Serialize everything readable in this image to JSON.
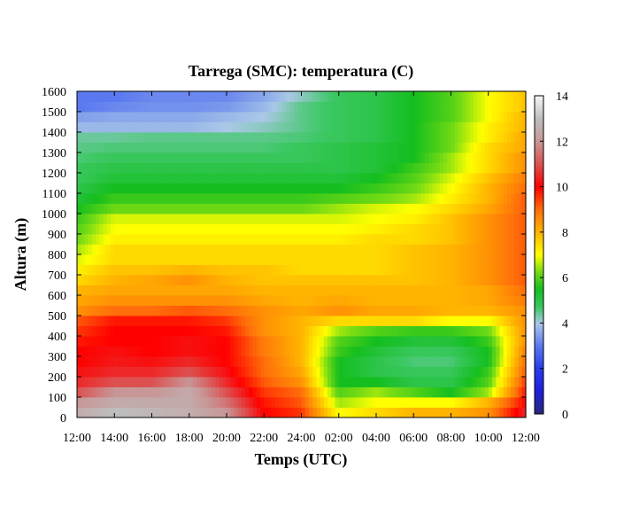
{
  "chart_data": {
    "type": "heatmap",
    "title": "Tarrega (SMC): temperatura (C)",
    "xlabel": "Temps (UTC)",
    "ylabel": "Altura (m)",
    "x_ticks": [
      "12:00",
      "14:00",
      "16:00",
      "18:00",
      "20:00",
      "22:00",
      "24:00",
      "02:00",
      "04:00",
      "06:00",
      "08:00",
      "10:00",
      "12:00"
    ],
    "y_ticks": [
      "0",
      "100",
      "200",
      "300",
      "400",
      "500",
      "600",
      "700",
      "800",
      "900",
      "1000",
      "1100",
      "1200",
      "1300",
      "1400",
      "1500",
      "1600"
    ],
    "colorbar_ticks": [
      "0",
      "2",
      "4",
      "6",
      "8",
      "10",
      "12",
      "14"
    ],
    "xlim_hours": [
      0,
      24
    ],
    "ylim": [
      0,
      1600
    ],
    "zlim": [
      0,
      14
    ],
    "levels_m": [
      0,
      50,
      100,
      150,
      200,
      250,
      300,
      350,
      400,
      450,
      500,
      550,
      600,
      650,
      700,
      750,
      800,
      850,
      900,
      950,
      1000,
      1050,
      1100,
      1150,
      1200,
      1250,
      1300,
      1350,
      1400,
      1450,
      1500,
      1550
    ],
    "times_h": [
      0,
      2,
      4,
      6,
      8,
      10,
      12,
      14,
      16,
      18,
      20,
      22,
      24
    ],
    "temperature": [
      [
        12.5,
        13.0,
        12.8,
        12.6,
        12.0,
        10.0,
        9.5,
        7.0,
        7.5,
        8.0,
        8.0,
        8.5,
        10.5
      ],
      [
        12.0,
        12.5,
        12.5,
        12.5,
        11.5,
        9.8,
        9.2,
        6.5,
        7.0,
        7.0,
        7.0,
        8.0,
        10.0
      ],
      [
        11.0,
        12.0,
        12.0,
        12.5,
        11.0,
        9.5,
        9.0,
        6.0,
        6.5,
        6.0,
        5.5,
        6.5,
        9.8
      ],
      [
        10.5,
        11.0,
        11.0,
        12.0,
        10.5,
        9.2,
        8.5,
        5.5,
        5.5,
        5.0,
        5.0,
        6.0,
        9.5
      ],
      [
        10.2,
        10.5,
        10.5,
        11.0,
        10.2,
        9.0,
        8.2,
        5.5,
        5.0,
        4.8,
        4.8,
        5.8,
        9.2
      ],
      [
        10.0,
        10.3,
        10.2,
        10.5,
        10.0,
        9.0,
        8.0,
        5.5,
        5.0,
        4.6,
        4.6,
        5.5,
        9.0
      ],
      [
        10.0,
        10.2,
        10.0,
        10.2,
        10.0,
        8.8,
        8.0,
        5.8,
        5.2,
        4.8,
        4.8,
        5.5,
        8.8
      ],
      [
        9.8,
        10.0,
        10.0,
        10.2,
        10.0,
        8.8,
        8.0,
        6.0,
        5.5,
        5.2,
        5.2,
        5.8,
        8.5
      ],
      [
        9.5,
        10.0,
        10.0,
        10.0,
        9.8,
        8.5,
        8.0,
        6.5,
        6.0,
        5.8,
        5.8,
        6.2,
        8.5
      ],
      [
        9.2,
        9.8,
        9.8,
        9.8,
        9.5,
        8.5,
        8.0,
        7.5,
        7.5,
        7.5,
        7.0,
        7.0,
        8.5
      ],
      [
        8.5,
        9.0,
        9.0,
        9.2,
        9.0,
        8.5,
        8.2,
        8.5,
        8.2,
        8.2,
        8.0,
        8.0,
        8.5
      ],
      [
        8.2,
        8.5,
        8.5,
        8.5,
        8.5,
        8.2,
        8.0,
        8.2,
        8.0,
        8.0,
        8.0,
        8.2,
        8.8
      ],
      [
        8.0,
        8.2,
        8.2,
        8.2,
        8.2,
        8.0,
        8.0,
        8.0,
        8.0,
        8.0,
        8.0,
        8.2,
        9.0
      ],
      [
        7.5,
        8.0,
        8.2,
        8.5,
        8.0,
        7.8,
        7.8,
        7.8,
        7.8,
        7.8,
        8.0,
        8.5,
        9.2
      ],
      [
        7.2,
        7.8,
        7.8,
        8.0,
        7.8,
        7.8,
        7.5,
        7.5,
        7.5,
        7.8,
        8.0,
        8.5,
        9.2
      ],
      [
        6.8,
        7.5,
        7.5,
        7.5,
        7.5,
        7.5,
        7.5,
        7.5,
        7.5,
        7.8,
        8.0,
        8.5,
        9.2
      ],
      [
        6.5,
        7.5,
        7.5,
        7.5,
        7.5,
        7.5,
        7.5,
        7.5,
        7.5,
        7.8,
        8.0,
        8.5,
        9.2
      ],
      [
        6.2,
        7.2,
        7.2,
        7.2,
        7.2,
        7.2,
        7.2,
        7.2,
        7.5,
        7.5,
        7.8,
        8.5,
        9.2
      ],
      [
        6.0,
        7.0,
        7.0,
        7.0,
        7.0,
        7.0,
        7.0,
        7.0,
        7.2,
        7.5,
        7.8,
        8.5,
        9.2
      ],
      [
        5.8,
        6.8,
        6.8,
        6.8,
        6.8,
        6.8,
        6.8,
        6.8,
        7.0,
        7.2,
        7.8,
        8.5,
        9.2
      ],
      [
        5.5,
        6.2,
        6.2,
        6.2,
        6.2,
        6.2,
        6.2,
        6.5,
        6.8,
        7.0,
        7.5,
        8.2,
        9.2
      ],
      [
        5.2,
        5.8,
        5.8,
        5.8,
        5.8,
        5.8,
        5.8,
        6.0,
        6.2,
        6.5,
        7.2,
        8.0,
        9.2
      ],
      [
        5.0,
        5.5,
        5.5,
        5.5,
        5.5,
        5.5,
        5.5,
        5.5,
        5.8,
        6.2,
        7.0,
        8.0,
        9.0
      ],
      [
        4.8,
        5.2,
        5.2,
        5.2,
        5.2,
        5.2,
        5.2,
        5.2,
        5.5,
        6.0,
        6.8,
        7.8,
        8.8
      ],
      [
        4.8,
        5.0,
        5.0,
        5.0,
        5.0,
        5.0,
        5.0,
        5.0,
        5.2,
        5.8,
        6.5,
        7.5,
        8.5
      ],
      [
        4.6,
        4.8,
        4.8,
        4.8,
        4.8,
        4.8,
        4.8,
        5.0,
        5.2,
        5.5,
        6.5,
        7.5,
        8.5
      ],
      [
        4.5,
        4.6,
        4.6,
        4.6,
        4.6,
        4.6,
        4.8,
        5.0,
        5.2,
        5.5,
        6.2,
        7.5,
        8.2
      ],
      [
        4.4,
        4.4,
        4.5,
        4.5,
        4.5,
        4.5,
        4.6,
        4.8,
        5.0,
        5.5,
        6.2,
        7.2,
        8.2
      ],
      [
        3.8,
        3.8,
        3.8,
        3.8,
        4.0,
        4.2,
        4.5,
        4.8,
        5.0,
        5.5,
        6.2,
        7.2,
        8.0
      ],
      [
        3.5,
        3.6,
        3.6,
        3.6,
        3.8,
        4.0,
        4.5,
        4.8,
        5.0,
        5.5,
        6.0,
        7.0,
        8.0
      ],
      [
        3.0,
        3.2,
        3.3,
        3.3,
        3.4,
        3.8,
        4.5,
        4.8,
        5.0,
        5.5,
        6.0,
        7.0,
        7.8
      ],
      [
        3.0,
        3.0,
        3.2,
        3.2,
        3.2,
        3.6,
        4.2,
        4.8,
        5.0,
        5.5,
        6.0,
        7.0,
        7.8
      ]
    ]
  }
}
